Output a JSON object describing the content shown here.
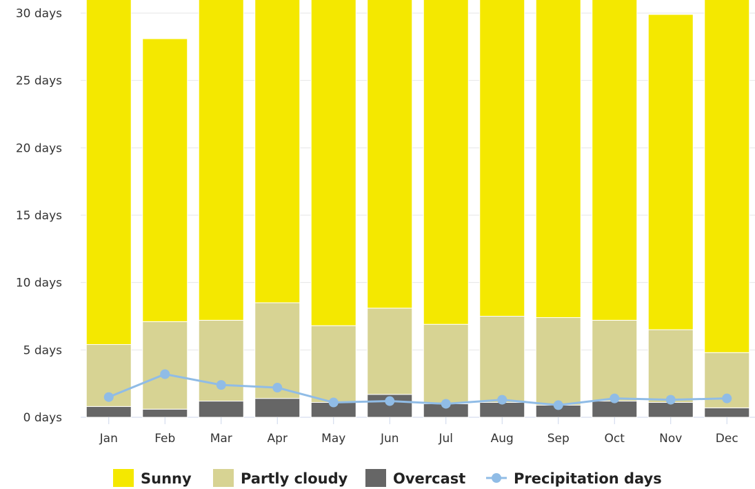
{
  "chart_data": {
    "type": "bar",
    "stacked": true,
    "categories": [
      "Jan",
      "Feb",
      "Mar",
      "Apr",
      "May",
      "Jun",
      "Jul",
      "Aug",
      "Sep",
      "Oct",
      "Nov",
      "Dec"
    ],
    "series": [
      {
        "name": "Overcast",
        "color": "#666666",
        "values": [
          0.8,
          0.6,
          1.2,
          1.4,
          1.1,
          1.7,
          1.0,
          1.1,
          0.9,
          1.2,
          1.1,
          0.7
        ]
      },
      {
        "name": "Partly cloudy",
        "color": "#d7d393",
        "values": [
          4.6,
          6.5,
          6.0,
          7.1,
          5.7,
          6.4,
          5.9,
          6.4,
          6.5,
          6.0,
          5.4,
          4.1
        ]
      },
      {
        "name": "Sunny",
        "color": "#f4e800",
        "values": [
          25.6,
          21.0,
          23.8,
          22.5,
          24.2,
          22.9,
          24.1,
          23.5,
          23.6,
          23.8,
          23.4,
          26.2
        ]
      }
    ],
    "line_series": {
      "name": "Precipitation days",
      "color": "#90bce6",
      "values": [
        1.5,
        3.2,
        2.4,
        2.2,
        1.1,
        1.2,
        1.0,
        1.3,
        0.9,
        1.4,
        1.3,
        1.4
      ]
    },
    "ylim": [
      0,
      30
    ],
    "yticks": [
      0,
      5,
      10,
      15,
      20,
      25,
      30
    ],
    "ytick_suffix": " days",
    "grid": true,
    "legend_position": "bottom"
  }
}
